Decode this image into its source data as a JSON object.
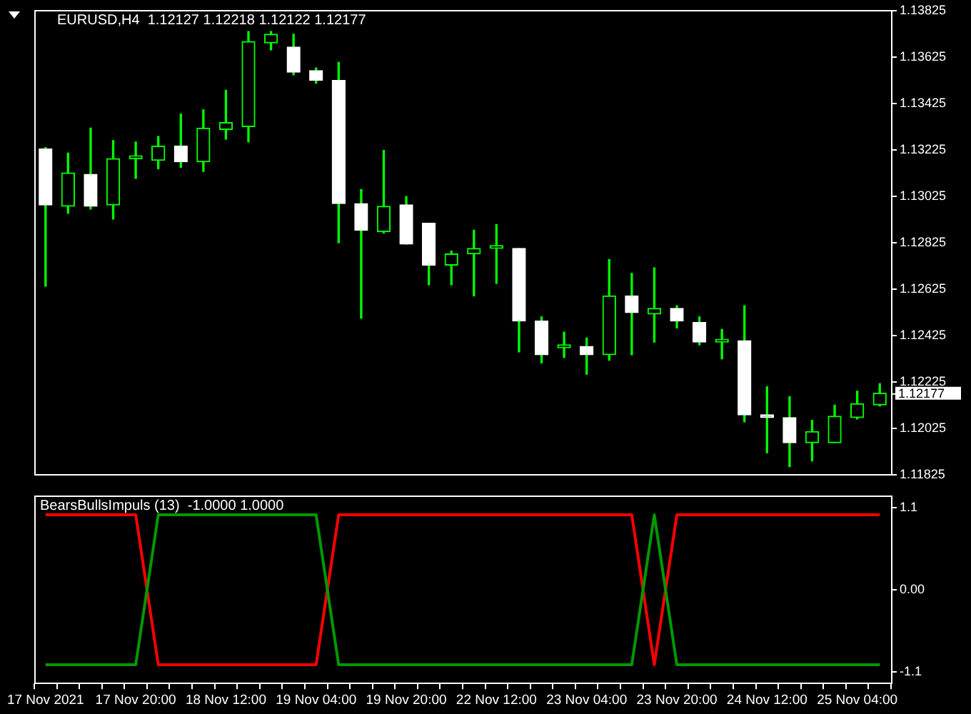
{
  "chart_data": [
    {
      "type": "candlestick",
      "title": "EURUSD,H4  1.12127 1.12218 1.12122 1.12177",
      "tick_labels": "y",
      "categories": [
        null,
        null,
        null,
        null,
        null,
        null,
        null,
        null,
        null,
        null,
        null,
        null,
        null,
        null,
        null,
        null,
        null,
        null,
        null,
        null,
        null,
        null,
        null,
        null,
        null,
        null,
        null,
        null,
        null,
        null,
        null,
        null,
        null,
        null,
        null,
        null,
        null,
        null
      ],
      "ohlc": [
        [
          1.13229,
          1.13235,
          1.12638,
          1.12988
        ],
        [
          1.12982,
          1.13211,
          1.12952,
          1.13126
        ],
        [
          1.1312,
          1.13319,
          1.1297,
          1.12982
        ],
        [
          1.12988,
          1.13265,
          1.12927,
          1.13187
        ],
        [
          1.13187,
          1.13259,
          1.13102,
          1.13187
        ],
        [
          1.1318,
          1.13283,
          1.13144,
          1.13241
        ],
        [
          1.13241,
          1.13379,
          1.1315,
          1.13174
        ],
        [
          1.13174,
          1.13397,
          1.13132,
          1.13319
        ],
        [
          1.13313,
          1.13482,
          1.13271,
          1.13343
        ],
        [
          1.13325,
          1.13735,
          1.13259,
          1.13692
        ],
        [
          1.13686,
          1.13735,
          1.13656,
          1.13723
        ],
        [
          1.13668,
          1.13723,
          1.13548,
          1.1356
        ],
        [
          1.13566,
          1.13578,
          1.13512,
          1.13524
        ],
        [
          1.13524,
          1.13602,
          1.12825,
          1.12994
        ],
        [
          1.12994,
          1.13054,
          1.125,
          1.12879
        ],
        [
          1.12873,
          1.13223,
          1.12867,
          1.12982
        ],
        [
          1.12988,
          1.13024,
          1.12819,
          1.12819
        ],
        [
          1.12909,
          1.12909,
          1.12644,
          1.12729
        ],
        [
          1.12729,
          1.12789,
          1.12644,
          1.12777
        ],
        [
          1.12777,
          1.12879,
          1.12596,
          1.12801
        ],
        [
          1.12801,
          1.12903,
          1.1265,
          1.12801
        ],
        [
          1.12801,
          1.12801,
          1.12355,
          1.12488
        ],
        [
          1.12488,
          1.12506,
          1.12307,
          1.12343
        ],
        [
          1.12373,
          1.1244,
          1.12331,
          1.12373
        ],
        [
          1.12379,
          1.12415,
          1.12259,
          1.12343
        ],
        [
          1.12343,
          1.12753,
          1.12319,
          1.12596
        ],
        [
          1.12596,
          1.12693,
          1.12343,
          1.12524
        ],
        [
          1.12518,
          1.12717,
          1.12397,
          1.12542
        ],
        [
          1.12542,
          1.12554,
          1.12458,
          1.12488
        ],
        [
          1.12482,
          1.12506,
          1.12385,
          1.12397
        ],
        [
          1.12397,
          1.12452,
          1.12325,
          1.12397
        ],
        [
          1.12403,
          1.12554,
          1.12054,
          1.12084
        ],
        [
          1.12084,
          1.12205,
          1.11921,
          1.12072
        ],
        [
          1.12072,
          1.12162,
          1.11861,
          1.11964
        ],
        [
          1.11964,
          1.1206,
          1.11885,
          1.12012
        ],
        [
          1.11964,
          1.12126,
          1.11964,
          1.12078
        ],
        [
          1.12072,
          1.12186,
          1.12066,
          1.12132
        ],
        [
          1.12127,
          1.12218,
          1.12122,
          1.12177
        ]
      ],
      "color": "#00ff00",
      "colors": [
        "#ffffff",
        "#00ff00",
        "#ffffff",
        "#00ff00",
        "#00ff00",
        "#00ff00",
        "#ffffff",
        "#00ff00",
        "#00ff00",
        "#00ff00",
        "#00ff00",
        "#ffffff",
        "#ffffff",
        "#ffffff",
        "#ffffff",
        "#00ff00",
        "#ffffff",
        "#ffffff",
        "#00ff00",
        "#00ff00",
        "#00ff00",
        "#ffffff",
        "#ffffff",
        "#00ff00",
        "#ffffff",
        "#00ff00",
        "#ffffff",
        "#00ff00",
        "#ffffff",
        "#ffffff",
        "#00ff00",
        "#ffffff",
        "#ffffff",
        "#ffffff",
        "#00ff00",
        "#00ff00",
        "#00ff00",
        "#00ff00"
      ],
      "ylim": [
        1.11825,
        1.13825
      ],
      "yticks": [
        1.11825,
        1.12025,
        1.12225,
        1.12425,
        1.12625,
        1.12825,
        1.13025,
        1.13225,
        1.13425,
        1.13625,
        1.13825
      ],
      "ref_lines": [
        {
          "axis": "y",
          "value": 1.12177,
          "label": "1.12177",
          "color": "#ffffff"
        }
      ]
    },
    {
      "type": "line",
      "title": "BearsBullsImpuls (13)  -1.0000 1.0000",
      "categories": [
        "17 Nov 2021",
        null,
        null,
        null,
        "17 Nov 20:00",
        null,
        null,
        null,
        "18 Nov 12:00",
        null,
        null,
        null,
        "19 Nov 04:00",
        null,
        null,
        null,
        "19 Nov 20:00",
        null,
        null,
        null,
        "22 Nov 12:00",
        null,
        null,
        null,
        "23 Nov 04:00",
        null,
        null,
        null,
        "23 Nov 20:00",
        null,
        null,
        null,
        "24 Nov 12:00",
        null,
        null,
        null,
        "25 Nov 04:00",
        null
      ],
      "series": [
        {
          "color": "#009900",
          "values": [
            -1,
            -1,
            -1,
            -1,
            -1,
            1,
            1,
            1,
            1,
            1,
            1,
            1,
            1,
            -1,
            -1,
            -1,
            -1,
            -1,
            -1,
            -1,
            -1,
            -1,
            -1,
            -1,
            -1,
            -1,
            -1,
            1,
            -1,
            -1,
            -1,
            -1,
            -1,
            -1,
            -1,
            -1,
            -1,
            -1
          ]
        },
        {
          "color": "#ff0000",
          "values": [
            1,
            1,
            1,
            1,
            1,
            -1,
            -1,
            -1,
            -1,
            -1,
            -1,
            -1,
            -1,
            1,
            1,
            1,
            1,
            1,
            1,
            1,
            1,
            1,
            1,
            1,
            1,
            1,
            1,
            -1,
            1,
            1,
            1,
            1,
            1,
            1,
            1,
            1,
            1,
            1
          ]
        }
      ],
      "ylim": [
        -1.25,
        1.25
      ],
      "yticks": [
        -1.1,
        {
          "value": 0,
          "label": "0.00"
        },
        1.1
      ]
    }
  ]
}
